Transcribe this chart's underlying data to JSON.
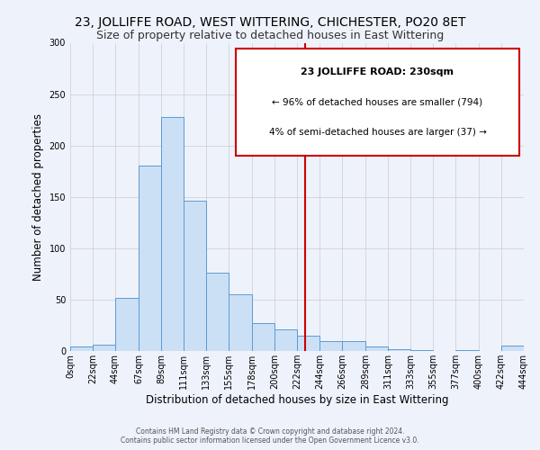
{
  "title": "23, JOLLIFFE ROAD, WEST WITTERING, CHICHESTER, PO20 8ET",
  "subtitle": "Size of property relative to detached houses in East Wittering",
  "xlabel": "Distribution of detached houses by size in East Wittering",
  "ylabel": "Number of detached properties",
  "bin_edges": [
    0,
    22,
    44,
    67,
    89,
    111,
    133,
    155,
    178,
    200,
    222,
    244,
    266,
    289,
    311,
    333,
    355,
    377,
    400,
    422,
    444
  ],
  "bin_counts": [
    4,
    6,
    52,
    180,
    228,
    146,
    76,
    55,
    27,
    21,
    15,
    10,
    10,
    4,
    2,
    1,
    0,
    1,
    0,
    5
  ],
  "tick_labels": [
    "0sqm",
    "22sqm",
    "44sqm",
    "67sqm",
    "89sqm",
    "111sqm",
    "133sqm",
    "155sqm",
    "178sqm",
    "200sqm",
    "222sqm",
    "244sqm",
    "266sqm",
    "289sqm",
    "311sqm",
    "333sqm",
    "355sqm",
    "377sqm",
    "400sqm",
    "422sqm",
    "444sqm"
  ],
  "bar_face_color": "#cce0f5",
  "bar_edge_color": "#5b9bd5",
  "grid_color": "#cccccc",
  "background_color": "#eef2fb",
  "vline_x": 230,
  "vline_color": "#cc0000",
  "annotation_title": "23 JOLLIFFE ROAD: 230sqm",
  "annotation_line1": "← 96% of detached houses are smaller (794)",
  "annotation_line2": "4% of semi-detached houses are larger (37) →",
  "annotation_box_color": "#ffffff",
  "annotation_box_edge": "#cc0000",
  "footer_line1": "Contains HM Land Registry data © Crown copyright and database right 2024.",
  "footer_line2": "Contains public sector information licensed under the Open Government Licence v3.0.",
  "ylim": [
    0,
    300
  ],
  "title_fontsize": 10,
  "subtitle_fontsize": 9,
  "xlabel_fontsize": 8.5,
  "ylabel_fontsize": 8.5,
  "tick_fontsize": 7
}
